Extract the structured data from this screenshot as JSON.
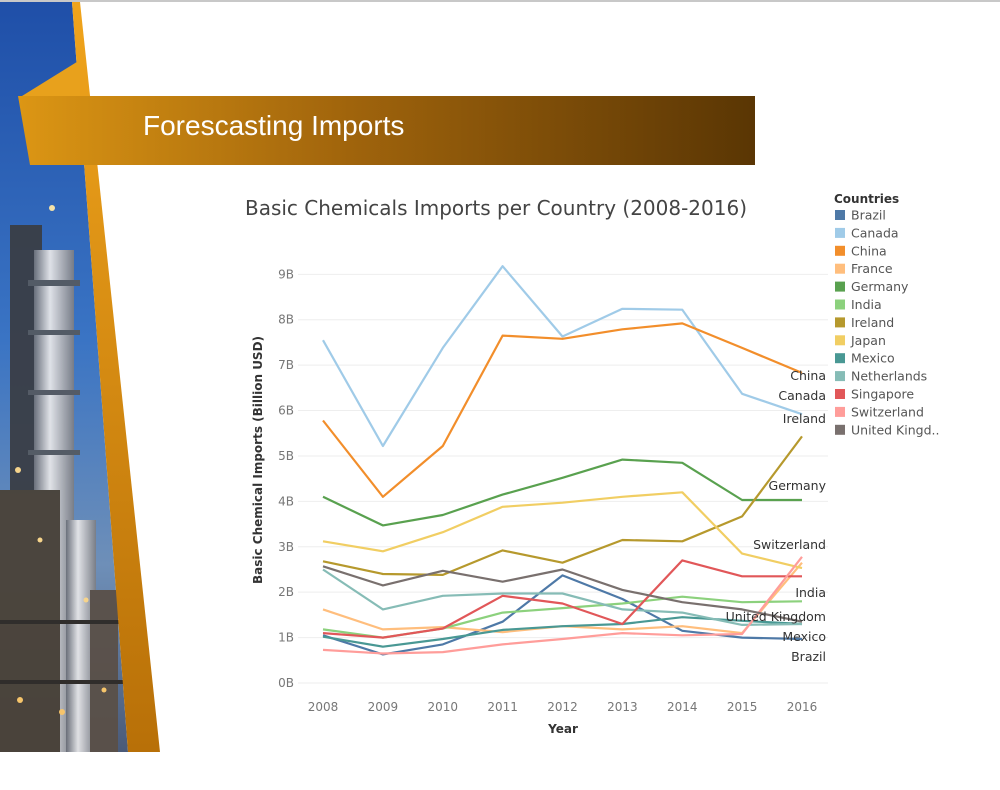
{
  "slide": {
    "title": "Forescasting Imports"
  },
  "colors": {
    "title_band": "#8a5a0a",
    "accent_orange": "#d88a10"
  },
  "chart_data": {
    "type": "line",
    "title": "Basic Chemicals Imports per Country (2008-2016)",
    "xlabel": "Year",
    "ylabel": "Basic Chemical Imports (Billion USD)",
    "x": [
      "2008",
      "2009",
      "2010",
      "2011",
      "2012",
      "2013",
      "2014",
      "2015",
      "2016"
    ],
    "ylim": [
      0,
      9.8
    ],
    "yticks": [
      0,
      1,
      2,
      3,
      4,
      5,
      6,
      7,
      8,
      9
    ],
    "ytick_labels": [
      "0B",
      "1B",
      "2B",
      "3B",
      "4B",
      "5B",
      "6B",
      "7B",
      "8B",
      "9B"
    ],
    "grid": true,
    "legend": {
      "title": "Countries",
      "position": "right"
    },
    "series": [
      {
        "name": "Brazil",
        "legend_label": "Brazil",
        "end_label": "Brazil",
        "color": "#4e79a7",
        "values": [
          1.05,
          0.63,
          0.85,
          1.35,
          2.37,
          1.85,
          1.15,
          1.0,
          0.97
        ]
      },
      {
        "name": "Canada",
        "legend_label": "Canada",
        "end_label": "Canada",
        "color": "#a0cbe8",
        "values": [
          7.55,
          5.22,
          7.38,
          9.18,
          7.63,
          8.24,
          8.22,
          6.37,
          5.92
        ]
      },
      {
        "name": "China",
        "legend_label": "China",
        "end_label": "China",
        "color": "#f28e2b",
        "values": [
          5.78,
          4.1,
          5.22,
          7.65,
          7.58,
          7.79,
          7.92,
          7.38,
          6.83
        ]
      },
      {
        "name": "France",
        "legend_label": "France",
        "end_label": "",
        "color": "#ffbe7d",
        "values": [
          1.62,
          1.18,
          1.23,
          1.12,
          1.25,
          1.18,
          1.25,
          1.1,
          2.65
        ]
      },
      {
        "name": "Germany",
        "legend_label": "Germany",
        "end_label": "Germany",
        "color": "#59a14f",
        "values": [
          4.1,
          3.47,
          3.7,
          4.15,
          4.52,
          4.92,
          4.85,
          4.03,
          4.03
        ]
      },
      {
        "name": "India",
        "legend_label": "India",
        "end_label": "India",
        "color": "#8cd17d",
        "values": [
          1.18,
          1.0,
          1.2,
          1.55,
          1.65,
          1.75,
          1.9,
          1.78,
          1.8
        ]
      },
      {
        "name": "Ireland",
        "legend_label": "Ireland",
        "end_label": "Ireland",
        "color": "#b6992d",
        "values": [
          2.68,
          2.4,
          2.38,
          2.92,
          2.65,
          3.15,
          3.12,
          3.67,
          5.43
        ]
      },
      {
        "name": "Japan",
        "legend_label": "Japan",
        "end_label": "",
        "color": "#f1ce63",
        "values": [
          3.12,
          2.9,
          3.32,
          3.88,
          3.97,
          4.1,
          4.2,
          2.85,
          2.53
        ]
      },
      {
        "name": "Mexico",
        "legend_label": "Mexico",
        "end_label": "Mexico",
        "color": "#499894",
        "values": [
          1.02,
          0.8,
          0.97,
          1.17,
          1.25,
          1.3,
          1.45,
          1.37,
          1.3
        ]
      },
      {
        "name": "Netherlands",
        "legend_label": "Netherlands",
        "end_label": "",
        "color": "#86bcb6",
        "values": [
          2.5,
          1.62,
          1.92,
          1.97,
          1.97,
          1.62,
          1.55,
          1.28,
          1.3
        ]
      },
      {
        "name": "Singapore",
        "legend_label": "Singapore",
        "end_label": "",
        "color": "#e15759",
        "values": [
          1.1,
          1.0,
          1.2,
          1.92,
          1.75,
          1.3,
          2.7,
          2.35,
          2.35
        ]
      },
      {
        "name": "Switzerland",
        "legend_label": "Switzerland",
        "end_label": "Switzerland",
        "color": "#ff9d9a",
        "values": [
          0.73,
          0.65,
          0.68,
          0.85,
          0.97,
          1.1,
          1.05,
          1.08,
          2.78
        ]
      },
      {
        "name": "United Kingdom",
        "legend_label": "United Kingd..",
        "end_label": "United Kingdom",
        "color": "#79706e",
        "values": [
          2.57,
          2.15,
          2.47,
          2.23,
          2.5,
          2.05,
          1.78,
          1.62,
          1.35
        ]
      }
    ]
  }
}
